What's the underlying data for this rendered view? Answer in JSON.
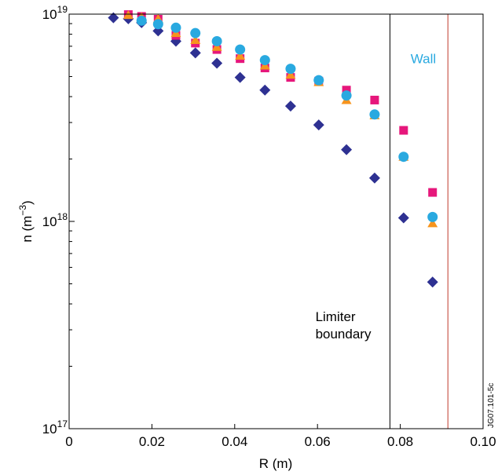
{
  "chart_data": {
    "type": "scatter",
    "xlabel": "R (m)",
    "ylabel": "n (m",
    "ylabel_sup": "−3",
    "ylabel_close": ")",
    "xlim": [
      0,
      0.1
    ],
    "ylim": [
      1e+17,
      1e+19
    ],
    "yscale": "log",
    "grid": false,
    "x_ticks": [
      {
        "value": 0,
        "label": "0"
      },
      {
        "value": 0.02,
        "label": "0.02"
      },
      {
        "value": 0.04,
        "label": "0.04"
      },
      {
        "value": 0.06,
        "label": "0.06"
      },
      {
        "value": 0.08,
        "label": "0.08"
      },
      {
        "value": 0.1,
        "label": "0.10"
      }
    ],
    "y_ticks": [
      {
        "value": 1e+17,
        "base": "10",
        "exp": "17"
      },
      {
        "value": 1e+18,
        "base": "10",
        "exp": "18"
      },
      {
        "value": 1e+19,
        "base": "10",
        "exp": "19"
      }
    ],
    "vlines": [
      {
        "x": 0.0775,
        "color": "#000000"
      },
      {
        "x": 0.0915,
        "color": "#c0392b"
      }
    ],
    "annotations": [
      {
        "lines": [
          "Limiter",
          "boundary"
        ],
        "x": 0.0595,
        "y": 3.3e+17,
        "color": "#000000"
      },
      {
        "lines": [
          "Wall"
        ],
        "x": 0.0825,
        "y": 5.8e+18,
        "color": "#29a9e0"
      }
    ],
    "side_label": "JG07.101-5c",
    "series": [
      {
        "marker": "diamond",
        "color": "#2e3192",
        "points": [
          [
            0.0107,
            9.6e+18
          ],
          [
            0.0143,
            9.5e+18
          ],
          [
            0.0175,
            9.1e+18
          ],
          [
            0.0215,
            8.3e+18
          ],
          [
            0.0258,
            7.4e+18
          ],
          [
            0.0305,
            6.5e+18
          ],
          [
            0.0357,
            5.8e+18
          ],
          [
            0.0413,
            4.95e+18
          ],
          [
            0.0473,
            4.3e+18
          ],
          [
            0.0535,
            3.6e+18
          ],
          [
            0.0603,
            2.92e+18
          ],
          [
            0.067,
            2.22e+18
          ],
          [
            0.0738,
            1.62e+18
          ],
          [
            0.0808,
            1.04e+18
          ],
          [
            0.0878,
            5.1e+17
          ]
        ]
      },
      {
        "marker": "square",
        "color": "#e6177b",
        "points": [
          [
            0.0143,
            9.95e+18
          ],
          [
            0.0175,
            9.75e+18
          ],
          [
            0.0215,
            9.45e+18
          ],
          [
            0.0258,
            7.9e+18
          ],
          [
            0.0305,
            7.25e+18
          ],
          [
            0.0357,
            6.75e+18
          ],
          [
            0.0413,
            6.1e+18
          ],
          [
            0.0473,
            5.5e+18
          ],
          [
            0.0535,
            4.95e+18
          ],
          [
            0.0603,
            4.75e+18
          ],
          [
            0.067,
            4.3e+18
          ],
          [
            0.0738,
            3.85e+18
          ],
          [
            0.0808,
            2.75e+18
          ],
          [
            0.0878,
            1.38e+18
          ]
        ]
      },
      {
        "marker": "triangle",
        "color": "#f7941d",
        "points": [
          [
            0.0143,
            9.9e+18
          ],
          [
            0.0175,
            9.7e+18
          ],
          [
            0.0215,
            9.5e+18
          ],
          [
            0.0258,
            8.1e+18
          ],
          [
            0.0305,
            7.5e+18
          ],
          [
            0.0357,
            6.95e+18
          ],
          [
            0.0413,
            6.3e+18
          ],
          [
            0.0473,
            5.65e+18
          ],
          [
            0.0535,
            5.1e+18
          ],
          [
            0.0603,
            4.7e+18
          ],
          [
            0.067,
            3.85e+18
          ],
          [
            0.0738,
            3.25e+18
          ],
          [
            0.0808,
            2.05e+18
          ],
          [
            0.0878,
            9.8e+17
          ]
        ]
      },
      {
        "marker": "circle",
        "color": "#29a9e0",
        "points": [
          [
            0.0175,
            9.3e+18
          ],
          [
            0.0215,
            8.95e+18
          ],
          [
            0.0258,
            8.6e+18
          ],
          [
            0.0305,
            8.1e+18
          ],
          [
            0.0357,
            7.4e+18
          ],
          [
            0.0413,
            6.75e+18
          ],
          [
            0.0473,
            6e+18
          ],
          [
            0.0535,
            5.45e+18
          ],
          [
            0.0603,
            4.8e+18
          ],
          [
            0.067,
            4.05e+18
          ],
          [
            0.0738,
            3.28e+18
          ],
          [
            0.0808,
            2.05e+18
          ],
          [
            0.0878,
            1.05e+18
          ]
        ]
      }
    ]
  }
}
